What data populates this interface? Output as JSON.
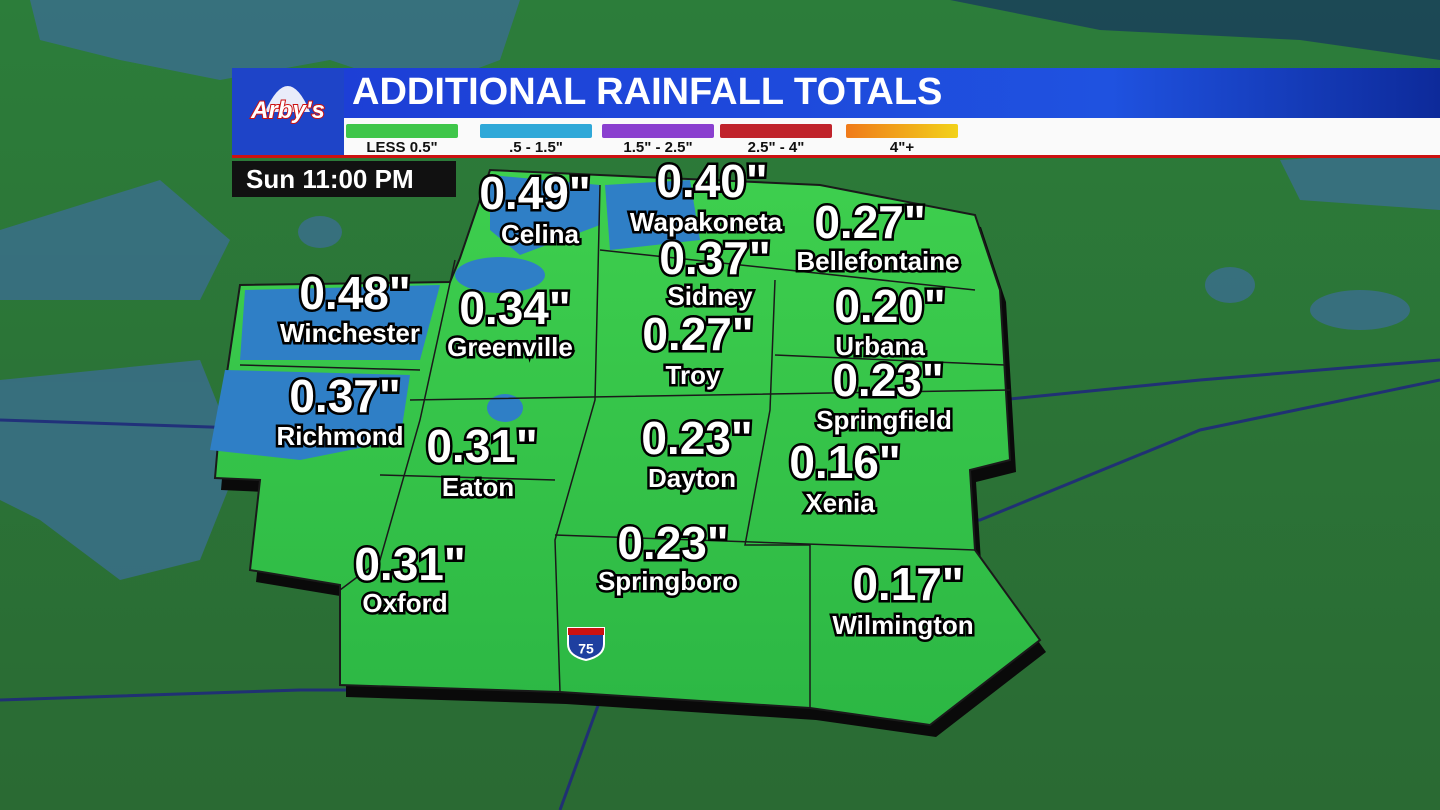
{
  "header": {
    "logo": "Arby's",
    "title": "ADDITIONAL RAINFALL TOTALS",
    "time": "Sun 11:00 PM"
  },
  "legend": [
    "LESS 0.5\"",
    ".5 - 1.5\"",
    "1.5\" - 2.5\"",
    "2.5\" - 4\"",
    "4\"+"
  ],
  "highway": "75",
  "cities": [
    {
      "name": "Celina",
      "amount": "0.49\""
    },
    {
      "name": "Wapakoneta",
      "amount": "0.40\""
    },
    {
      "name": "Bellefontaine",
      "amount": "0.27\""
    },
    {
      "name": "Sidney",
      "amount": "0.37\""
    },
    {
      "name": "Winchester",
      "amount": "0.48\""
    },
    {
      "name": "Greenville",
      "amount": "0.34\""
    },
    {
      "name": "Troy",
      "amount": "0.27\""
    },
    {
      "name": "Urbana",
      "amount": "0.20\""
    },
    {
      "name": "Springfield",
      "amount": "0.23\""
    },
    {
      "name": "Richmond",
      "amount": "0.37\""
    },
    {
      "name": "Eaton",
      "amount": "0.31\""
    },
    {
      "name": "Dayton",
      "amount": "0.23\""
    },
    {
      "name": "Xenia",
      "amount": "0.16\""
    },
    {
      "name": "Springboro",
      "amount": "0.23\""
    },
    {
      "name": "Oxford",
      "amount": "0.31\""
    },
    {
      "name": "Wilmington",
      "amount": "0.17\""
    }
  ]
}
